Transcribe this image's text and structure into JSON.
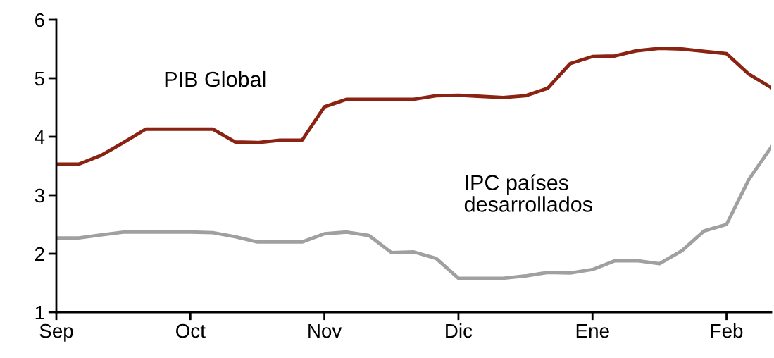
{
  "chart_data": {
    "type": "line",
    "ylim": [
      1,
      6
    ],
    "yticks": [
      1,
      2,
      3,
      4,
      5,
      6
    ],
    "categories": [
      "Sep",
      null,
      null,
      null,
      null,
      null,
      "Oct",
      null,
      null,
      null,
      null,
      null,
      "Nov",
      null,
      null,
      null,
      null,
      null,
      "Dic",
      null,
      null,
      null,
      null,
      null,
      "Ene",
      null,
      null,
      null,
      null,
      null,
      "Feb",
      null,
      null
    ],
    "grid": false,
    "legend": false,
    "marker": "none",
    "line_style": "solid",
    "series": [
      {
        "name": "PIB Global",
        "color": "#8b2312",
        "values": [
          3.53,
          3.53,
          3.68,
          3.9,
          4.13,
          4.13,
          4.13,
          4.13,
          3.91,
          3.9,
          3.94,
          3.94,
          4.51,
          4.64,
          4.64,
          4.64,
          4.64,
          4.7,
          4.71,
          4.69,
          4.67,
          4.7,
          4.83,
          5.25,
          5.37,
          5.38,
          5.47,
          5.51,
          5.5,
          5.46,
          5.42,
          5.07,
          4.84
        ]
      },
      {
        "name": "IPC países\ndesarrollados",
        "color": "#a0a0a0",
        "values": [
          2.27,
          2.27,
          2.32,
          2.37,
          2.37,
          2.37,
          2.37,
          2.36,
          2.29,
          2.2,
          2.2,
          2.2,
          2.34,
          2.37,
          2.31,
          2.02,
          2.03,
          1.92,
          1.58,
          1.58,
          1.58,
          1.62,
          1.68,
          1.67,
          1.73,
          1.88,
          1.88,
          1.83,
          2.05,
          2.39,
          2.5,
          3.27,
          3.82
        ]
      }
    ]
  }
}
